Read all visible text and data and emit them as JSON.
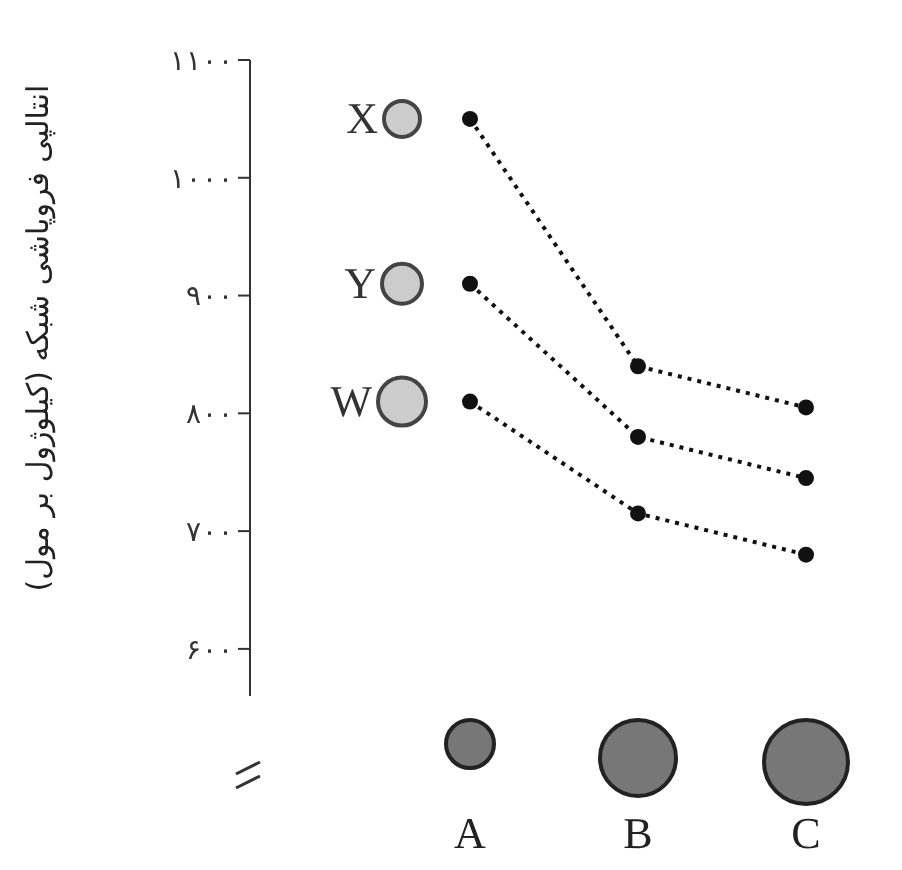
{
  "chart_data": {
    "type": "line",
    "ylabel": "انتالپی فروپاشی شبکه (کیلوژول بر مول)",
    "categories": [
      "A",
      "B",
      "C"
    ],
    "series": [
      {
        "name": "X",
        "color": "#111111",
        "values": [
          1050,
          840,
          805
        ]
      },
      {
        "name": "Y",
        "color": "#111111",
        "values": [
          910,
          780,
          745
        ]
      },
      {
        "name": "W",
        "color": "#111111",
        "values": [
          810,
          715,
          680
        ]
      }
    ],
    "ylim": [
      560,
      1100
    ],
    "yticks": [
      {
        "value": 600,
        "label": "۶۰۰"
      },
      {
        "value": 700,
        "label": "۷۰۰"
      },
      {
        "value": 800,
        "label": "۸۰۰"
      },
      {
        "value": 900,
        "label": "۹۰۰"
      },
      {
        "value": 1000,
        "label": "۱۰۰۰"
      },
      {
        "value": 1100,
        "label": "۱۱۰۰"
      }
    ],
    "grid": false,
    "marker": "circle",
    "line_style": "dotted"
  }
}
